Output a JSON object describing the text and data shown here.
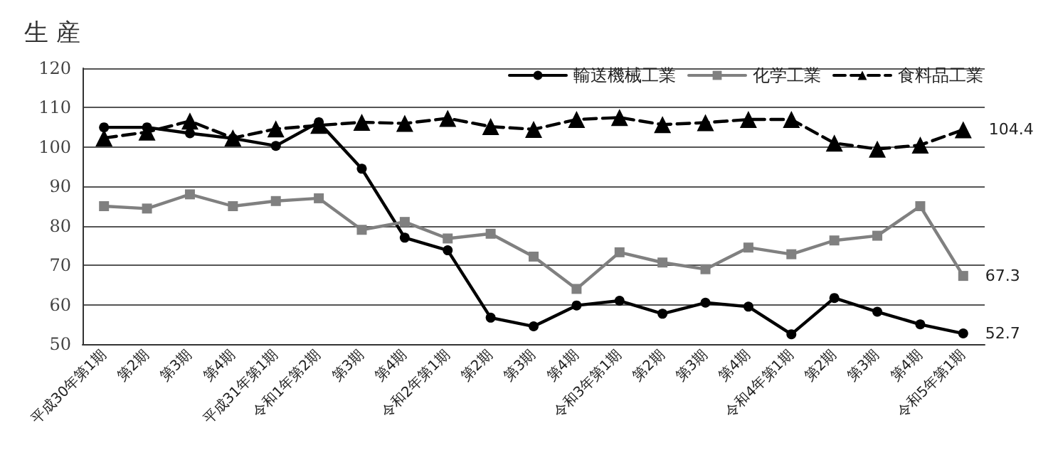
{
  "chart_data": {
    "type": "line",
    "title": "生 産",
    "categories": [
      "平成30年第1期",
      "第2期",
      "第3期",
      "第4期",
      "平成31年第1期",
      "令和1年第2期",
      "第3期",
      "第4期",
      "令和2年第1期",
      "第2期",
      "第3期",
      "第4期",
      "令和3年第1期",
      "第2期",
      "第3期",
      "第4期",
      "令和4年第1期",
      "第2期",
      "第3期",
      "第4期",
      "令和5年第1期"
    ],
    "series": [
      {
        "name": "輸送機械工業",
        "color": "#000000",
        "marker": "circle",
        "line_style": "solid",
        "values": [
          105,
          105,
          103.5,
          102.2,
          100.3,
          106.3,
          94.5,
          77,
          73.8,
          56.7,
          54.5,
          59.8,
          61,
          57.7,
          60.5,
          59.5,
          52.5,
          61.7,
          58.2,
          55,
          52.7
        ],
        "value_labels": [
          null,
          null,
          null,
          null,
          null,
          null,
          null,
          null,
          null,
          null,
          null,
          null,
          null,
          null,
          null,
          null,
          null,
          null,
          null,
          null,
          "52.7"
        ]
      },
      {
        "name": "化学工業",
        "color": "#808080",
        "marker": "square",
        "line_style": "solid",
        "values": [
          85,
          84.4,
          88,
          85,
          86.3,
          87,
          79,
          81,
          76.8,
          78,
          72.2,
          64,
          73.3,
          70.7,
          69,
          74.5,
          72.8,
          76.3,
          77.5,
          85,
          67.3
        ],
        "value_labels": [
          null,
          null,
          null,
          null,
          null,
          null,
          null,
          null,
          null,
          null,
          null,
          null,
          null,
          null,
          null,
          null,
          null,
          null,
          null,
          null,
          "67.3"
        ]
      },
      {
        "name": "食料品工業",
        "color": "#000000",
        "marker": "triangle",
        "line_style": "dashed",
        "values": [
          102.3,
          103.8,
          106.6,
          102.3,
          104.6,
          105.5,
          106.3,
          106,
          107.3,
          105.2,
          104.5,
          107,
          107.5,
          105.7,
          106.2,
          107,
          107,
          101,
          99.5,
          100.5,
          104.4
        ],
        "value_labels": [
          null,
          null,
          null,
          null,
          null,
          null,
          null,
          null,
          null,
          null,
          null,
          null,
          null,
          null,
          null,
          null,
          null,
          null,
          null,
          null,
          "104.4"
        ]
      }
    ],
    "ylim": [
      50,
      120
    ],
    "yticks": [
      50,
      60,
      70,
      80,
      90,
      100,
      110,
      120
    ],
    "grid": "y",
    "legend": "top right"
  }
}
